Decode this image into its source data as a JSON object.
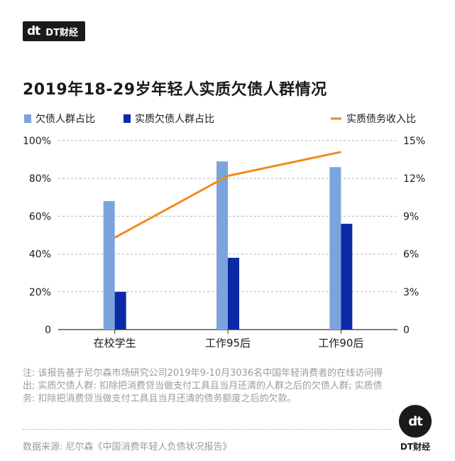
{
  "brand": {
    "mark": "dt",
    "name": "DT财经"
  },
  "title": "2019年18-29岁年轻人实质欠债人群情况",
  "colors": {
    "bar1": "#7ba4dc",
    "bar2": "#0d2aa6",
    "line": "#f28a1c",
    "grid": "#b5b5b5",
    "axis": "#333333"
  },
  "chart_data": {
    "type": "bar",
    "categories": [
      "在校学生",
      "工作95后",
      "工作90后"
    ],
    "series": [
      {
        "name": "欠债人群占比",
        "kind": "bar",
        "axis": "left",
        "values": [
          68,
          89,
          86
        ]
      },
      {
        "name": "实质欠债人群占比",
        "kind": "bar",
        "axis": "left",
        "values": [
          20,
          38,
          56
        ]
      },
      {
        "name": "实质债务收入比",
        "kind": "line",
        "axis": "right",
        "values": [
          7.3,
          12.2,
          14.1
        ]
      }
    ],
    "left_axis": {
      "ylim": [
        0,
        100
      ],
      "ticks": [
        "0",
        "20%",
        "40%",
        "60%",
        "80%",
        "100%"
      ]
    },
    "right_axis": {
      "ylim": [
        0,
        15
      ],
      "ticks": [
        "0",
        "3%",
        "6%",
        "9%",
        "12%",
        "15%"
      ]
    },
    "grid": true,
    "legend": "top"
  },
  "notes": "注: 该报告基于尼尔森市场研究公司2019年9-10月3036名中国年轻消费者的在线访问得出; 实质欠债人群: 扣除把消费贷当做支付工具且当月还清的人群之后的欠债人群; 实质债务: 扣除把消费贷当做支付工具且当月还清的债务额度之后的欠款。",
  "source": "数据来源: 尼尔森《中国消费年轻人负债状况报告》"
}
